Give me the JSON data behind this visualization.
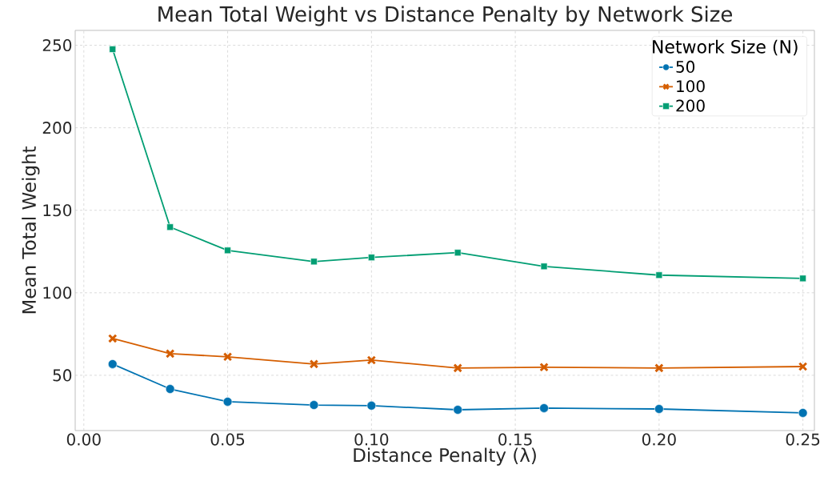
{
  "chart_data": {
    "type": "line",
    "title": "Mean Total Weight vs Distance Penalty by Network Size",
    "xlabel": "Distance Penalty (λ)",
    "ylabel": "Mean Total Weight",
    "legend_title": "Network Size (N)",
    "x": [
      0.01,
      0.03,
      0.05,
      0.08,
      0.1,
      0.13,
      0.16,
      0.2,
      0.25
    ],
    "series": [
      {
        "name": "50",
        "color": "#0173b2",
        "marker": "circle",
        "values": [
          56.8,
          41.7,
          34.0,
          32.0,
          31.6,
          29.1,
          30.1,
          29.6,
          27.2
        ]
      },
      {
        "name": "100",
        "color": "#d55e00",
        "marker": "cross",
        "values": [
          72.3,
          63.1,
          61.2,
          56.8,
          59.2,
          54.4,
          54.9,
          54.4,
          55.3
        ]
      },
      {
        "name": "200",
        "color": "#029e73",
        "marker": "square",
        "values": [
          247.6,
          139.8,
          125.7,
          118.9,
          121.4,
          124.3,
          116.0,
          110.7,
          108.7
        ]
      }
    ],
    "xlim": [
      -0.003,
      0.254
    ],
    "ylim": [
      16.5,
      259
    ],
    "xticks": [
      {
        "value": 0,
        "label": "0.00"
      },
      {
        "value": 0.05,
        "label": "0.05"
      },
      {
        "value": 0.1,
        "label": "0.10"
      },
      {
        "value": 0.15,
        "label": "0.15"
      },
      {
        "value": 0.2,
        "label": "0.20"
      },
      {
        "value": 0.25,
        "label": "0.25"
      }
    ],
    "yticks": [
      50,
      100,
      150,
      200,
      250
    ],
    "grid": true,
    "legend": "top right",
    "line_style": "solid"
  }
}
